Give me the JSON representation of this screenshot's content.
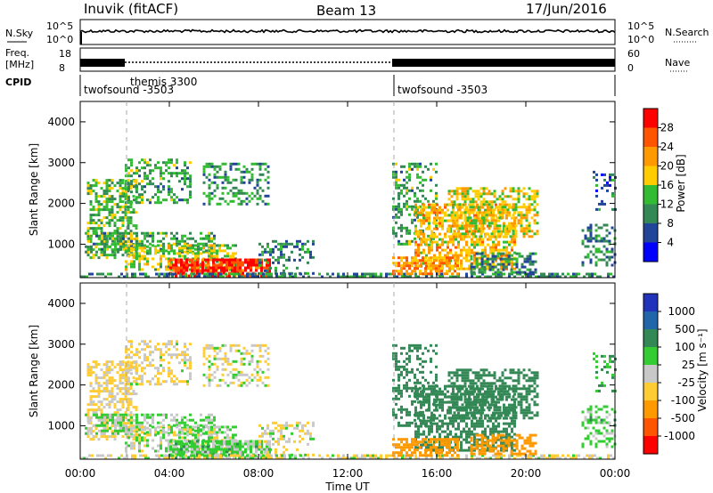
{
  "header": {
    "station": "Inuvik (fitACF)",
    "beam": "Beam 13",
    "date": "17/Jun/2016"
  },
  "strip": {
    "nsky_label": "N.Sky",
    "nsky_ticks": [
      "10^5",
      "10^0"
    ],
    "nsearch_label": "N.Search",
    "nsearch_ticks": [
      "10^5",
      "10^0"
    ],
    "freq_label_1": "Freq.",
    "freq_label_2": "[MHz]",
    "freq_ticks": [
      "18",
      "8"
    ],
    "nave_label": "Nave",
    "nave_ticks": [
      "60",
      "0"
    ],
    "cpid_label": "CPID",
    "cpid_segments": [
      {
        "name": "twofsound -3503",
        "start_h": 0,
        "end_h": 2
      },
      {
        "name": "themis 3300",
        "start_h": 2,
        "end_h": 14
      },
      {
        "name": "twofsound -3503",
        "start_h": 14,
        "end_h": 24
      }
    ]
  },
  "panels": {
    "power": {
      "ylabel": "Slant Range [km]",
      "yticks": [
        "4000",
        "3000",
        "2000",
        "1000"
      ]
    },
    "velocity": {
      "ylabel": "Slant Range [km]",
      "yticks": [
        "4000",
        "3000",
        "2000",
        "1000"
      ]
    }
  },
  "xaxis": {
    "label": "Time UT",
    "ticks": [
      "00:00",
      "04:00",
      "08:00",
      "12:00",
      "16:00",
      "20:00",
      "00:00"
    ]
  },
  "colorbars": {
    "power": {
      "label": "Power [dB]",
      "ticks": [
        "28",
        "24",
        "20",
        "16",
        "12",
        "8",
        "4"
      ],
      "colors": [
        "#ff0000",
        "#ff5500",
        "#ff9900",
        "#ffcc00",
        "#33bb33",
        "#338855",
        "#224499",
        "#0000ff"
      ]
    },
    "velocity": {
      "label": "Velocity [m s⁻¹]",
      "ticks": [
        "1000",
        "500",
        "100",
        "25",
        "-25",
        "-100",
        "-500",
        "-1000"
      ],
      "colors": [
        "#2233bb",
        "#2266aa",
        "#338855",
        "#33cc33",
        "#c8c8c8",
        "#ffcc33",
        "#ff9900",
        "#ff5500",
        "#ff0000"
      ]
    }
  },
  "chart_data": {
    "type": "heatmap",
    "title": "Inuvik (fitACF)",
    "subtitle": "Beam 13",
    "xlabel": "Time UT",
    "ylabel": "Slant Range [km]",
    "xlim_hours": [
      0,
      24
    ],
    "ylim_km": [
      180,
      4500
    ],
    "power_db_range": [
      0,
      32
    ],
    "velocity_range": [
      -1000,
      1000
    ],
    "echo_regions": [
      {
        "t0": 0.3,
        "t1": 2.5,
        "r0": 700,
        "r1": 2600,
        "power": 14,
        "velocity": -40,
        "density": 0.55
      },
      {
        "t0": 2.0,
        "t1": 5.0,
        "r0": 2000,
        "r1": 3100,
        "power": 12,
        "velocity": -30,
        "density": 0.4
      },
      {
        "t0": 5.5,
        "t1": 8.5,
        "r0": 2000,
        "r1": 3000,
        "power": 11,
        "velocity": -20,
        "density": 0.4
      },
      {
        "t0": 0.2,
        "t1": 6.0,
        "r0": 800,
        "r1": 1300,
        "power": 12,
        "velocity": 40,
        "density": 0.5
      },
      {
        "t0": 2.0,
        "t1": 7.0,
        "r0": 400,
        "r1": 1000,
        "power": 16,
        "velocity": 10,
        "density": 0.55
      },
      {
        "t0": 4.0,
        "t1": 8.5,
        "r0": 200,
        "r1": 650,
        "power": 28,
        "velocity": 50,
        "density": 0.8
      },
      {
        "t0": 8.0,
        "t1": 10.5,
        "r0": 300,
        "r1": 1100,
        "power": 10,
        "velocity": -20,
        "density": 0.35
      },
      {
        "t0": 0.0,
        "t1": 24.0,
        "r0": 180,
        "r1": 300,
        "power": 10,
        "velocity": -10,
        "density": 0.6
      },
      {
        "t0": 14.0,
        "t1": 16.0,
        "r0": 1000,
        "r1": 3000,
        "power": 12,
        "velocity": 300,
        "density": 0.35
      },
      {
        "t0": 15.0,
        "t1": 19.5,
        "r0": 400,
        "r1": 2000,
        "power": 20,
        "velocity": 400,
        "density": 0.6
      },
      {
        "t0": 16.5,
        "t1": 20.5,
        "r0": 1200,
        "r1": 2400,
        "power": 18,
        "velocity": 200,
        "density": 0.5
      },
      {
        "t0": 17.5,
        "t1": 20.5,
        "r0": 300,
        "r1": 800,
        "power": 10,
        "velocity": -300,
        "density": 0.5
      },
      {
        "t0": 14.0,
        "t1": 17.0,
        "r0": 250,
        "r1": 700,
        "power": 22,
        "velocity": -200,
        "density": 0.6
      },
      {
        "t0": 22.5,
        "t1": 24.0,
        "r0": 500,
        "r1": 1500,
        "power": 10,
        "velocity": 50,
        "density": 0.4
      },
      {
        "t0": 23.0,
        "t1": 24.0,
        "r0": 1800,
        "r1": 2800,
        "power": 8,
        "velocity": 100,
        "density": 0.25
      }
    ]
  }
}
